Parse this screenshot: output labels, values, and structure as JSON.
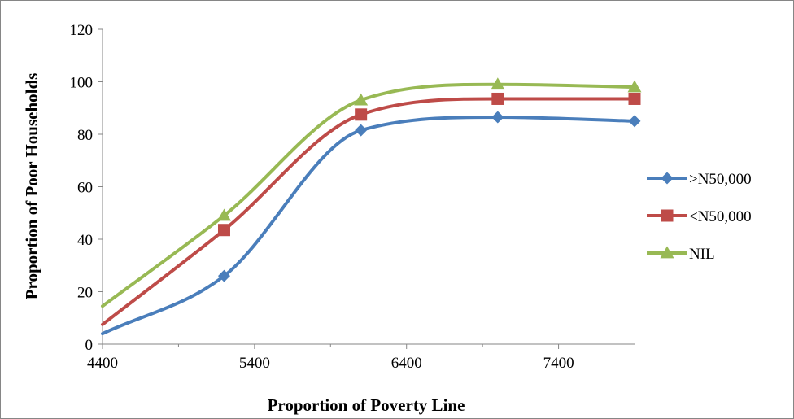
{
  "chart_data": {
    "type": "line",
    "title": "",
    "xlabel": "Proportion of Poverty Line",
    "ylabel": "Proportion of Poor Households",
    "xlim": [
      4400,
      7900
    ],
    "ylim": [
      0,
      120
    ],
    "x_ticks": [
      4400,
      5400,
      6400,
      7400
    ],
    "y_ticks": [
      0,
      20,
      40,
      60,
      80,
      100,
      120
    ],
    "grid": false,
    "smooth": true,
    "legend_position": "right",
    "x": [
      4400,
      5200,
      6100,
      7000,
      7900
    ],
    "series": [
      {
        "name": ">N50,000",
        "values": [
          4,
          26,
          81.5,
          86.5,
          85
        ],
        "color": "#4a7ebb",
        "marker": "diamond"
      },
      {
        "name": "<N50,000",
        "values": [
          7.5,
          43.5,
          87.5,
          93.5,
          93.5
        ],
        "color": "#be4b48",
        "marker": "square"
      },
      {
        "name": "NIL",
        "values": [
          14.5,
          49,
          93,
          99,
          98
        ],
        "color": "#98b954",
        "marker": "triangle"
      }
    ]
  }
}
